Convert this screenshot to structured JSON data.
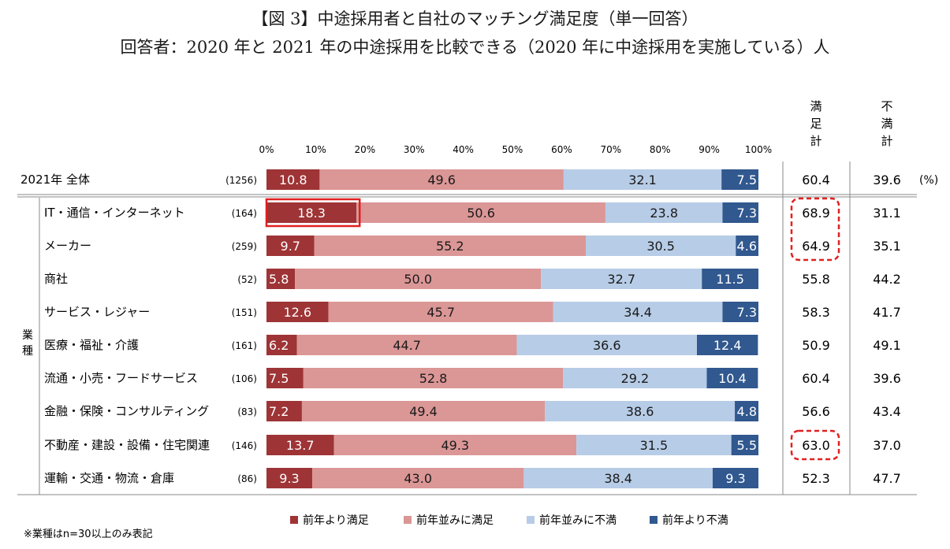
{
  "title_line1": "【図 3】中途採用者と自社のマッチング満足度（単一回答）",
  "title_line2": "回答者：2020 年と 2021 年の中途採用を比較できる（2020 年に中途採用を実施している）人",
  "footnote": "※業種はn=30以上のみ表記",
  "colors": {
    "more_satisfied": "#9e3436",
    "same_satisfied": "#db9696",
    "same_dissatisfied": "#b7cce6",
    "more_dissatisfied": "#31588f",
    "highlight": "#e02020"
  },
  "chart_data": {
    "type": "bar",
    "orientation": "horizontal",
    "stacked": true,
    "percent_stacked": true,
    "title": "【図 3】中途採用者と自社のマッチング満足度（単一回答）",
    "xlim": [
      0,
      100
    ],
    "xticks": [
      "0%",
      "10%",
      "20%",
      "30%",
      "40%",
      "50%",
      "60%",
      "70%",
      "80%",
      "90%",
      "100%"
    ],
    "group_label": "業種",
    "unit_label": "(%)",
    "legend_position": "bottom",
    "satisfied_header": "満足計",
    "dissatisfied_header": "不満計",
    "series": [
      {
        "name": "前年より満足",
        "color_key": "more_satisfied"
      },
      {
        "name": "前年並みに満足",
        "color_key": "same_satisfied"
      },
      {
        "name": "前年並みに不満",
        "color_key": "same_dissatisfied"
      },
      {
        "name": "前年より不満",
        "color_key": "more_dissatisfied"
      }
    ],
    "categories": [
      {
        "label": "2021年 全体",
        "n": "(1256)",
        "values": [
          10.8,
          49.6,
          32.1,
          7.5
        ],
        "satisfied_total": "60.4",
        "dissatisfied_total": "39.6",
        "is_total": true
      },
      {
        "label": "IT・通信・インターネット",
        "n": "(164)",
        "values": [
          18.3,
          50.6,
          23.8,
          7.3
        ],
        "satisfied_total": "68.9",
        "dissatisfied_total": "31.1",
        "highlight_first": true
      },
      {
        "label": "メーカー",
        "n": "(259)",
        "values": [
          9.7,
          55.2,
          30.5,
          4.6
        ],
        "satisfied_total": "64.9",
        "dissatisfied_total": "35.1"
      },
      {
        "label": "商社",
        "n": "(52)",
        "values": [
          5.8,
          50.0,
          32.7,
          11.5
        ],
        "satisfied_total": "55.8",
        "dissatisfied_total": "44.2"
      },
      {
        "label": "サービス・レジャー",
        "n": "(151)",
        "values": [
          12.6,
          45.7,
          34.4,
          7.3
        ],
        "satisfied_total": "58.3",
        "dissatisfied_total": "41.7"
      },
      {
        "label": "医療・福祉・介護",
        "n": "(161)",
        "values": [
          6.2,
          44.7,
          36.6,
          12.4
        ],
        "satisfied_total": "50.9",
        "dissatisfied_total": "49.1"
      },
      {
        "label": "流通・小売・フードサービス",
        "n": "(106)",
        "values": [
          7.5,
          52.8,
          29.2,
          10.4
        ],
        "satisfied_total": "60.4",
        "dissatisfied_total": "39.6"
      },
      {
        "label": "金融・保険・コンサルティング",
        "n": "(83)",
        "values": [
          7.2,
          49.4,
          38.6,
          4.8
        ],
        "satisfied_total": "56.6",
        "dissatisfied_total": "43.4"
      },
      {
        "label": "不動産・建設・設備・住宅関連",
        "n": "(146)",
        "values": [
          13.7,
          49.3,
          31.5,
          5.5
        ],
        "satisfied_total": "63.0",
        "dissatisfied_total": "37.0"
      },
      {
        "label": "運輸・交通・物流・倉庫",
        "n": "(86)",
        "values": [
          9.3,
          43.0,
          38.4,
          9.3
        ],
        "satisfied_total": "52.3",
        "dissatisfied_total": "47.7"
      }
    ],
    "highlighted_satisfied_groups": [
      [
        1,
        2
      ],
      [
        8
      ]
    ]
  }
}
